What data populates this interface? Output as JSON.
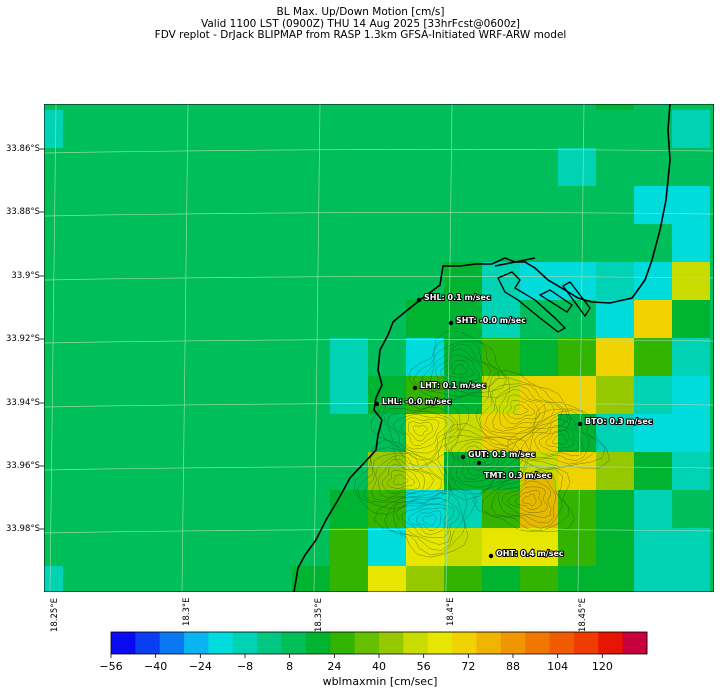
{
  "title": {
    "line1": "BL Max. Up/Down Motion [cm/s]",
    "line2": "Valid 1100 LST (0900Z) THU 14 Aug 2025 [33hrFcst@0600z]",
    "line3": "FDV replot - DrJack BLIPMAP from RASP 1.3km GFSA-Initiated WRF-ARW model"
  },
  "lat_labels": [
    "33.86°S",
    "33.88°S",
    "33.9°S",
    "33.92°S",
    "33.94°S",
    "33.96°S",
    "33.98°S"
  ],
  "lon_labels": [
    "18.25°E",
    "18.3°E",
    "18.35°E",
    "18.4°E",
    "18.45°E"
  ],
  "sites": [
    {
      "id": "SHL",
      "label": "SHL: 0.1 m/sec"
    },
    {
      "id": "SHT",
      "label": "SHT: -0.0 m/sec"
    },
    {
      "id": "LHT",
      "label": "LHT: 0.1 m/sec"
    },
    {
      "id": "LHL",
      "label": "LHL: -0.0 m/sec"
    },
    {
      "id": "BTO",
      "label": "BTO: 0.3 m/sec"
    },
    {
      "id": "GUT",
      "label": "GUT: 0.3 m/sec"
    },
    {
      "id": "TMT",
      "label": "TMT: 0.3 m/sec"
    },
    {
      "id": "OHT",
      "label": "OHT: 0.4 m/sec"
    }
  ],
  "colorbar": {
    "label": "wblmaxmin [cm/sec]",
    "ticks": [
      "−56",
      "−40",
      "−24",
      "−8",
      "8",
      "24",
      "40",
      "56",
      "72",
      "88",
      "104",
      "120"
    ],
    "min": -56,
    "max": 136,
    "step": 8,
    "colors": [
      "#0a0af0",
      "#0a3ef0",
      "#0a78f0",
      "#0ab4f0",
      "#00dcdc",
      "#00d2b4",
      "#00c882",
      "#00be5a",
      "#00b432",
      "#32b400",
      "#64c000",
      "#96c800",
      "#c8dc00",
      "#e6e600",
      "#f0d200",
      "#f0b400",
      "#f09600",
      "#f07800",
      "#f05a00",
      "#f03c00",
      "#e61400",
      "#c8003c"
    ]
  }
}
